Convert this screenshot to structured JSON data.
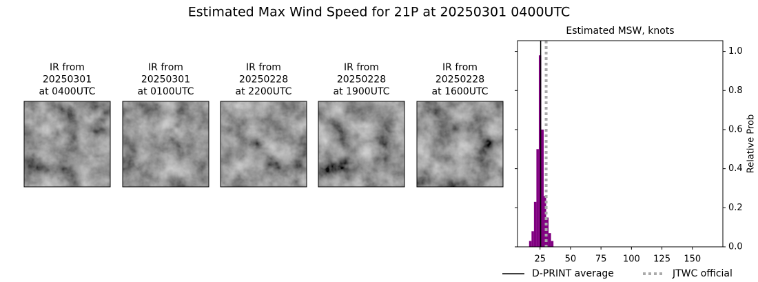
{
  "title": "Estimated Max Wind Speed for 21P at 20250301 0400UTC",
  "panels": [
    {
      "lines": [
        "IR from",
        "20250301",
        "at 0400UTC"
      ]
    },
    {
      "lines": [
        "IR from",
        "20250301",
        "at 0100UTC"
      ]
    },
    {
      "lines": [
        "IR from",
        "20250228",
        "at 2200UTC"
      ]
    },
    {
      "lines": [
        "IR from",
        "20250228",
        "at 1900UTC"
      ]
    },
    {
      "lines": [
        "IR from",
        "20250228",
        "at 1600UTC"
      ]
    }
  ],
  "chart_data": {
    "type": "histogram",
    "title": "Estimated MSW, knots",
    "y_label": "Relative Prob",
    "bins": [
      16,
      18,
      20,
      22,
      24,
      26,
      28,
      30,
      32,
      34,
      36
    ],
    "values": [
      0.03,
      0.08,
      0.23,
      0.5,
      0.98,
      0.6,
      0.26,
      0.15,
      0.07,
      0.03
    ],
    "color": "#800080",
    "xlim": [
      6.5,
      175
    ],
    "ylim": [
      0,
      1.055
    ],
    "xticks": [
      25,
      50,
      75,
      100,
      125,
      150
    ],
    "yticks": [
      {
        "value": 0,
        "label": "0.0"
      },
      {
        "value": 0.2,
        "label": "0.2"
      },
      {
        "value": 0.4,
        "label": "0.4"
      },
      {
        "value": 0.6,
        "label": "0.6"
      },
      {
        "value": 0.8,
        "label": "0.8"
      },
      {
        "value": 1.0,
        "label": "1.0"
      }
    ],
    "reference_lines": [
      {
        "name": "D-PRINT average",
        "value": 25.5,
        "color": "#000000",
        "style": "solid"
      },
      {
        "name": "JTWC official",
        "value": 30,
        "color": "#aaaaaa",
        "style": "dotted"
      }
    ],
    "legend": "bottom"
  }
}
